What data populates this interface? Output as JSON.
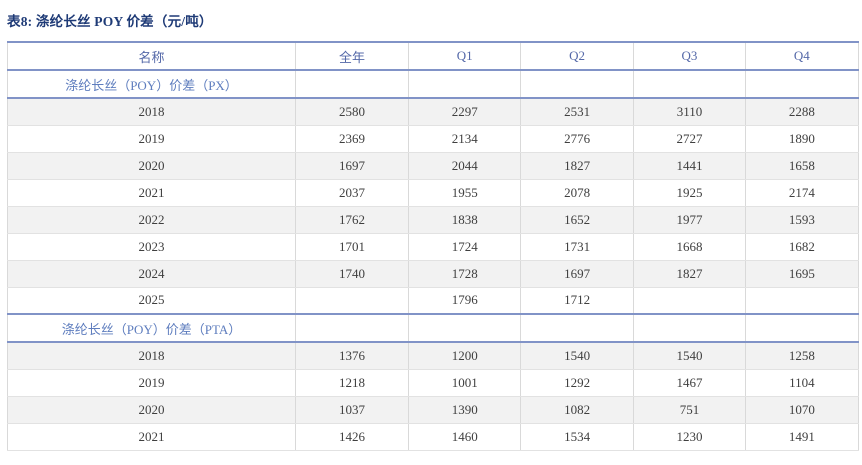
{
  "title": "表8: 涤纶长丝 POY 价差（元/吨）",
  "table": {
    "columns": [
      "名称",
      "全年",
      "Q1",
      "Q2",
      "Q3",
      "Q4"
    ],
    "rows": [
      {
        "type": "section",
        "label": "涤纶长丝（POY）价差（PX）",
        "values": [
          "",
          "",
          "",
          "",
          ""
        ]
      },
      {
        "type": "data",
        "shaded": true,
        "name": "2018",
        "values": [
          "2580",
          "2297",
          "2531",
          "3110",
          "2288"
        ]
      },
      {
        "type": "data",
        "shaded": false,
        "name": "2019",
        "values": [
          "2369",
          "2134",
          "2776",
          "2727",
          "1890"
        ]
      },
      {
        "type": "data",
        "shaded": true,
        "name": "2020",
        "values": [
          "1697",
          "2044",
          "1827",
          "1441",
          "1658"
        ]
      },
      {
        "type": "data",
        "shaded": false,
        "name": "2021",
        "values": [
          "2037",
          "1955",
          "2078",
          "1925",
          "2174"
        ]
      },
      {
        "type": "data",
        "shaded": true,
        "name": "2022",
        "values": [
          "1762",
          "1838",
          "1652",
          "1977",
          "1593"
        ]
      },
      {
        "type": "data",
        "shaded": false,
        "name": "2023",
        "values": [
          "1701",
          "1724",
          "1731",
          "1668",
          "1682"
        ]
      },
      {
        "type": "data",
        "shaded": true,
        "name": "2024",
        "values": [
          "1740",
          "1728",
          "1697",
          "1827",
          "1695"
        ]
      },
      {
        "type": "data",
        "shaded": false,
        "name": "2025",
        "values": [
          "",
          "1796",
          "1712",
          "",
          ""
        ]
      },
      {
        "type": "section",
        "label": "涤纶长丝（POY）价差（PTA）",
        "values": [
          "",
          "",
          "",
          "",
          ""
        ]
      },
      {
        "type": "data",
        "shaded": true,
        "name": "2018",
        "values": [
          "1376",
          "1200",
          "1540",
          "1540",
          "1258"
        ]
      },
      {
        "type": "data",
        "shaded": false,
        "name": "2019",
        "values": [
          "1218",
          "1001",
          "1292",
          "1467",
          "1104"
        ]
      },
      {
        "type": "data",
        "shaded": true,
        "name": "2020",
        "values": [
          "1037",
          "1390",
          "1082",
          "751",
          "1070"
        ]
      },
      {
        "type": "data",
        "shaded": false,
        "name": "2021",
        "values": [
          "1426",
          "1460",
          "1534",
          "1230",
          "1491"
        ]
      }
    ]
  },
  "colors": {
    "title_text": "#1e3a76",
    "header_text": "#5468a8",
    "section_text": "#5e7dbe",
    "data_text": "#3f3f3f",
    "blue_border": "#8193c7",
    "grid_border": "#d9d9d9",
    "shaded_row_bg": "#f2f2f2"
  },
  "chart_data": {
    "type": "table",
    "title": "表8: 涤纶长丝 POY 价差（元/吨）",
    "columns": [
      "名称",
      "全年",
      "Q1",
      "Q2",
      "Q3",
      "Q4"
    ],
    "sections": [
      {
        "name": "涤纶长丝（POY）价差（PX）",
        "rows": [
          [
            "2018",
            2580,
            2297,
            2531,
            3110,
            2288
          ],
          [
            "2019",
            2369,
            2134,
            2776,
            2727,
            1890
          ],
          [
            "2020",
            1697,
            2044,
            1827,
            1441,
            1658
          ],
          [
            "2021",
            2037,
            1955,
            2078,
            1925,
            2174
          ],
          [
            "2022",
            1762,
            1838,
            1652,
            1977,
            1593
          ],
          [
            "2023",
            1701,
            1724,
            1731,
            1668,
            1682
          ],
          [
            "2024",
            1740,
            1728,
            1697,
            1827,
            1695
          ],
          [
            "2025",
            null,
            1796,
            1712,
            null,
            null
          ]
        ]
      },
      {
        "name": "涤纶长丝（POY）价差（PTA）",
        "rows": [
          [
            "2018",
            1376,
            1200,
            1540,
            1540,
            1258
          ],
          [
            "2019",
            1218,
            1001,
            1292,
            1467,
            1104
          ],
          [
            "2020",
            1037,
            1390,
            1082,
            751,
            1070
          ],
          [
            "2021",
            1426,
            1460,
            1534,
            1230,
            1491
          ]
        ]
      }
    ]
  }
}
